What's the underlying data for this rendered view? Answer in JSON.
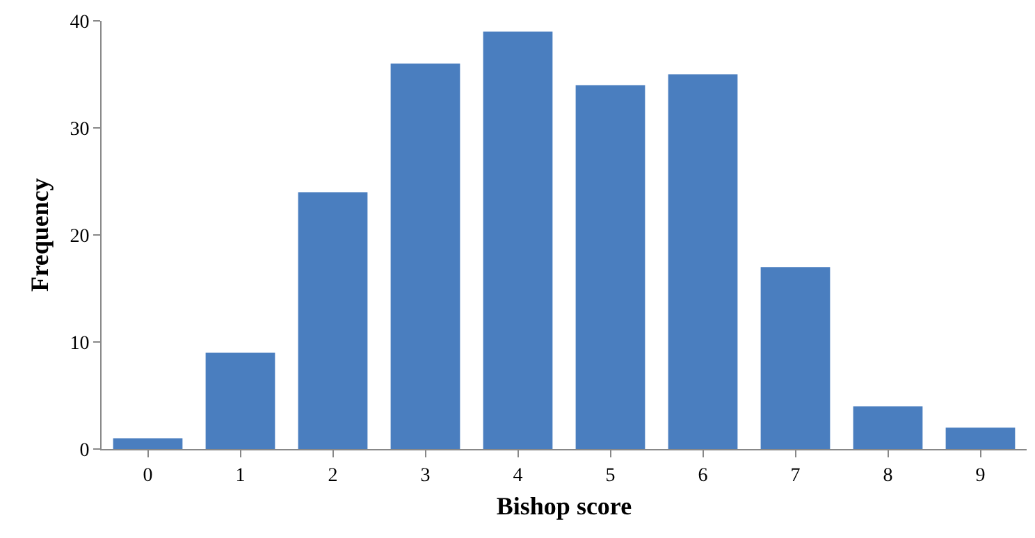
{
  "chart_data": {
    "type": "bar",
    "xlabel": "Bishop score",
    "ylabel": "Frequency",
    "categories": [
      "0",
      "1",
      "2",
      "3",
      "4",
      "5",
      "6",
      "7",
      "8",
      "9"
    ],
    "values": [
      1,
      9,
      24,
      36,
      39,
      34,
      35,
      17,
      4,
      2
    ],
    "color": "#4a7ebf",
    "ylim": [
      0,
      40
    ],
    "yticks": [
      0,
      10,
      20,
      30,
      40
    ]
  }
}
